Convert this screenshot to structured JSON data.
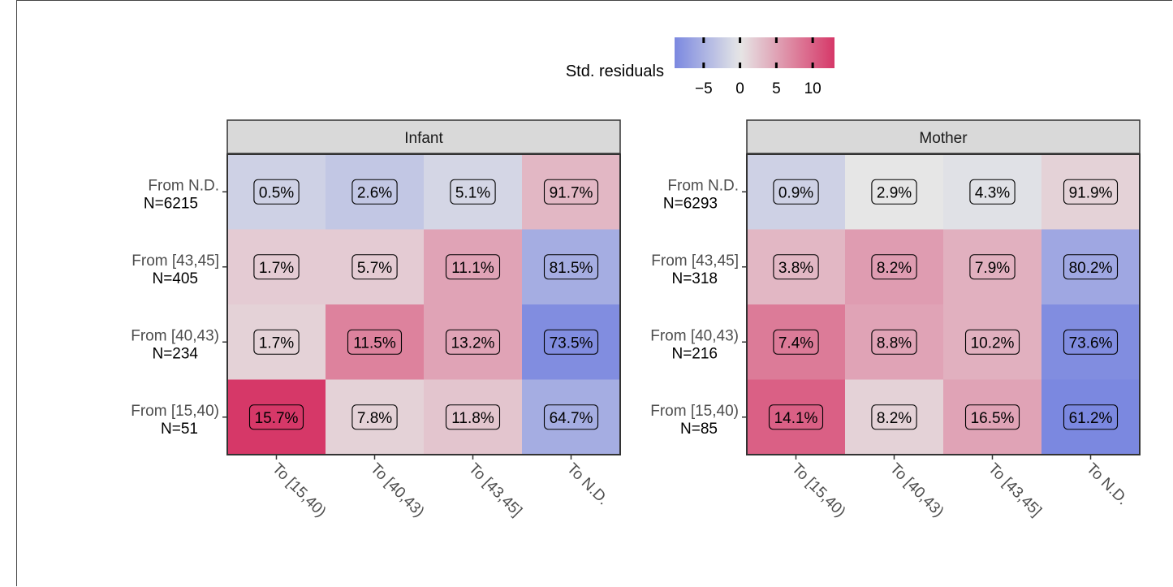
{
  "chart_data": {
    "type": "heatmap",
    "legend": {
      "title": "Std. residuals",
      "ticks": [
        -5,
        0,
        5,
        10
      ],
      "range": [
        -9,
        13
      ],
      "colors": {
        "low": "#7b88e0",
        "mid": "#e6e6e6",
        "high": "#d63868"
      },
      "placement": "top"
    },
    "panels": [
      {
        "name": "Infant",
        "columns": [
          "To [15,40)",
          "To [40,43)",
          "To [43,45]",
          "To N.D."
        ],
        "rows": [
          {
            "label": "From N.D.",
            "n": "N=6215",
            "values": [
              0.5,
              2.6,
              5.1,
              91.7
            ],
            "residuals": [
              -2,
              -3,
              -1.5,
              3.5
            ]
          },
          {
            "label": "From [43,45]",
            "n": "N=405",
            "values": [
              1.7,
              5.7,
              11.1,
              81.5
            ],
            "residuals": [
              2,
              2,
              5,
              -5.5
            ]
          },
          {
            "label": "From [40,43)",
            "n": "N=234",
            "values": [
              1.7,
              11.5,
              13.2,
              73.5
            ],
            "residuals": [
              1.5,
              7.5,
              5,
              -8.5
            ]
          },
          {
            "label": "From [15,40)",
            "n": "N=51",
            "values": [
              15.7,
              7.8,
              11.8,
              64.7
            ],
            "residuals": [
              13,
              1.5,
              2.5,
              -5.5
            ]
          }
        ]
      },
      {
        "name": "Mother",
        "columns": [
          "To [15,40)",
          "To [40,43)",
          "To [43,45]",
          "To N.D."
        ],
        "rows": [
          {
            "label": "From N.D.",
            "n": "N=6293",
            "values": [
              0.9,
              2.9,
              4.3,
              91.9
            ],
            "residuals": [
              -2,
              0,
              -0.5,
              1.5
            ]
          },
          {
            "label": "From [43,45]",
            "n": "N=318",
            "values": [
              3.8,
              8.2,
              7.9,
              80.2
            ],
            "residuals": [
              3.5,
              5.5,
              4,
              -6
            ]
          },
          {
            "label": "From [40,43)",
            "n": "N=216",
            "values": [
              7.4,
              8.8,
              10.2,
              73.6
            ],
            "residuals": [
              8,
              5,
              4,
              -8.5
            ]
          },
          {
            "label": "From [15,40)",
            "n": "N=85",
            "values": [
              14.1,
              8.2,
              16.5,
              61.2
            ],
            "residuals": [
              10,
              1.5,
              5,
              -9
            ]
          }
        ]
      }
    ],
    "value_suffix": "%"
  }
}
